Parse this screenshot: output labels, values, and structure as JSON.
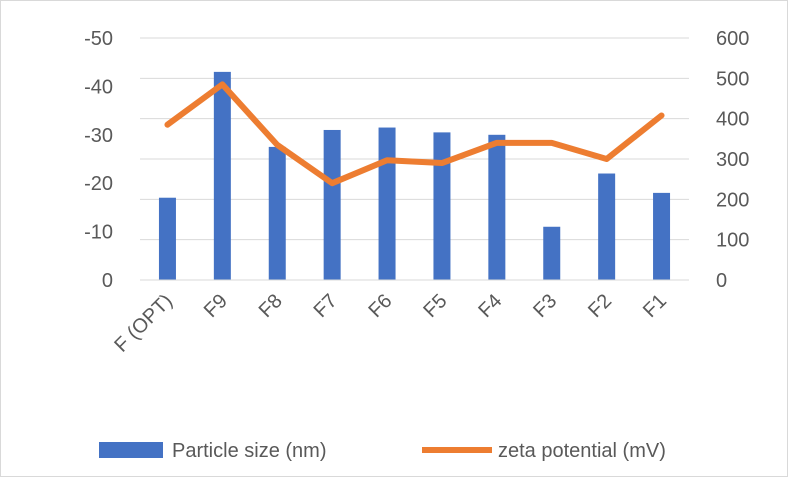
{
  "chart_data": {
    "type": "bar",
    "categories": [
      "F (OPT)",
      "F9",
      "F8",
      "F7",
      "F6",
      "F5",
      "F4",
      "F3",
      "F2",
      "F1"
    ],
    "series": [
      {
        "name": "Particle size (nm)",
        "type": "bar",
        "axis": "left",
        "color": "#4472C4",
        "values": [
          -17,
          -43,
          -27.5,
          -31,
          -31.5,
          -30.5,
          -30,
          -11,
          -22,
          -18
        ]
      },
      {
        "name": "zeta potential (mV)",
        "type": "line",
        "axis": "right",
        "color": "#ED7D31",
        "values": [
          385,
          485,
          335,
          240,
          297,
          290,
          340,
          340,
          300,
          408
        ]
      }
    ],
    "y_left": {
      "min": 0,
      "max": -50,
      "ticks": [
        "-50",
        "-40",
        "-30",
        "-20",
        "-10",
        "0"
      ],
      "tick_values": [
        -50,
        -40,
        -30,
        -20,
        -10,
        0
      ]
    },
    "y_right": {
      "min": 0,
      "max": 600,
      "ticks": [
        "600",
        "500",
        "400",
        "300",
        "200",
        "100",
        "0"
      ],
      "tick_values": [
        600,
        500,
        400,
        300,
        200,
        100,
        0
      ]
    },
    "grid": true,
    "legend_position": "bottom"
  }
}
